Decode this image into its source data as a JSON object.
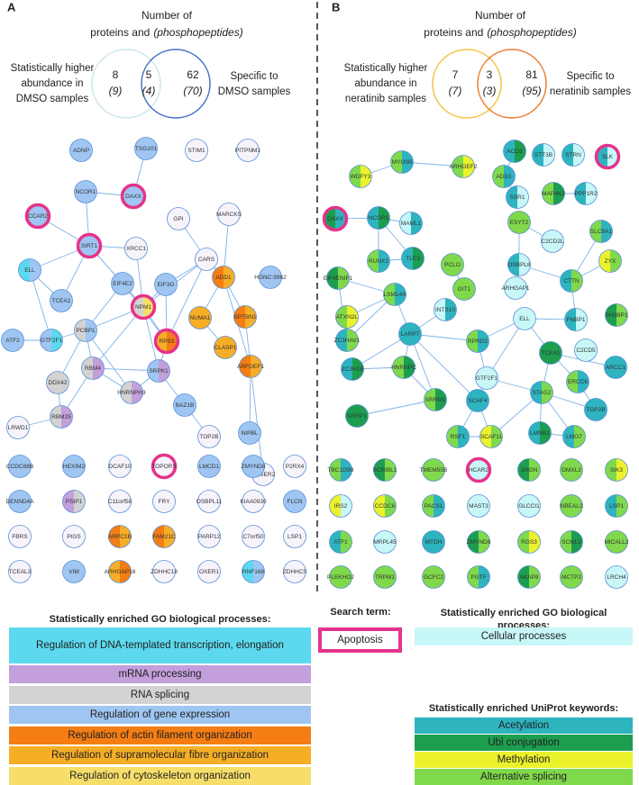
{
  "panels": [
    {
      "letter": "A",
      "venn": {
        "title": "Number of",
        "subtitle": "proteins and",
        "subtitle_italic": "(phosphopeptides)",
        "left_label": [
          "Statistically higher",
          "abundance in",
          "DMSO samples"
        ],
        "right_label": [
          "Specific to",
          "DMSO samples"
        ],
        "counts": [
          {
            "proteins": "8",
            "phosphopeptides": "(9)"
          },
          {
            "proteins": "5",
            "phosphopeptides": "(4)"
          },
          {
            "proteins": "62",
            "phosphopeptides": "(70)"
          }
        ]
      },
      "network": [
        "ADNP",
        "TSG101",
        "STIM1",
        "PITPNM1",
        "NCOR1",
        "DAXX",
        "CCAR2",
        "GPI",
        "MARCKS",
        "SIRT1",
        "XRCC1",
        "CARS",
        "ELL",
        "ADD1",
        "HGNC:9962",
        "EIF4E2",
        "EIF3G",
        "TCEA1",
        "NPM1",
        "NUMA1",
        "SPTBN1",
        "ATF2",
        "GTF2F1",
        "PCBP1",
        "RPS3",
        "CLASP1",
        "RBM4",
        "SRPK1",
        "ARFGEF1",
        "DDX42",
        "HNRNPH3",
        "BAZ1B",
        "RBM25",
        "LRWD1",
        "TOP2B",
        "NIPBL",
        "CCSER2"
      ],
      "unconnected": [
        "CCDC88B",
        "HEXIM2",
        "DCAF10",
        "TOPORS",
        "LMCD1",
        "ZMYND8",
        "P2RX4",
        "DENND4A",
        "PSIP1",
        "C11orf58",
        "FRY",
        "OSBPL11",
        "KIAA0930",
        "FLCN",
        "FBRS",
        "PIGS",
        "ARPC1B",
        "FAM21C",
        "PARP12",
        "C7orf50",
        "LSP1",
        "TCEAL3",
        "VIM",
        "ARHGAP18",
        "ZDHHC18",
        "OXER1",
        "RNF168",
        "ZDHHC5"
      ]
    },
    {
      "letter": "B",
      "venn": {
        "title": "Number of",
        "subtitle": "proteins and",
        "subtitle_italic": "(phosphopeptides)",
        "left_label": [
          "Statistically higher",
          "abundance in",
          "neratinib samples"
        ],
        "right_label": [
          "Specific to",
          "neratinib samples"
        ],
        "counts": [
          {
            "proteins": "7",
            "phosphopeptides": "(7)"
          },
          {
            "proteins": "3",
            "phosphopeptides": "(3)"
          },
          {
            "proteins": "81",
            "phosphopeptides": "(95)"
          }
        ]
      },
      "network": [
        "WDFY3",
        "MYO9B",
        "ARHGEF2",
        "ACO2",
        "STT3B",
        "STRN",
        "SLK",
        "ADD1",
        "SSR1",
        "MAP4K2",
        "PPP1R2",
        "DAXX",
        "NCOR1",
        "MAML1",
        "RUNX1",
        "TLE3",
        "ESYT2",
        "C2CD2L",
        "SLC9A1",
        "EIF4ENIF1",
        "PCLO",
        "GIT1",
        "OSBPL8",
        "ARHGAP1",
        "ZYX",
        "CTTN",
        "LSM14A",
        "ATXN2L",
        "INTS10",
        "FNBP1",
        "SH3BP1",
        "ELL",
        "ZC3HAV1",
        "LARP7",
        "RPRD2",
        "C2CD5",
        "TCEA1",
        "ARCC1",
        "ZC3H18",
        "HNRNPC",
        "GTF2F1",
        "ERCC6",
        "SRRM1",
        "SCAF4",
        "NSRP1",
        "STAG2",
        "TOP2B",
        "RSF1",
        "SCAF11",
        "LMNB1",
        "LMO7"
      ],
      "unconnected": [
        "TBC1D9B",
        "SCRIBL1",
        "TMEM55B",
        "HCAR2",
        "SRGN",
        "DMXL2",
        "SIK3",
        "IRS2",
        "CCDC6",
        "PACS1",
        "MAST3",
        "GLCCI1",
        "NBEAL2",
        "LSP1",
        "ATF1",
        "MRPL45",
        "MTDH",
        "ZMYND8",
        "RGS3",
        "SCML2",
        "MICALL2",
        "PLEKHO2",
        "TRPM1",
        "GCFC2",
        "PGTF",
        "AKAP8",
        "MCTP2",
        "LRCH4",
        "GFPT1",
        "NHSL2",
        "DNAJC2",
        "ANKS1A",
        "SMG8",
        "IL17RA"
      ]
    }
  ],
  "legend": {
    "go_title": "Statistically enriched GO biological processes:",
    "go_left": [
      {
        "label": "Regulation of DNA-templated transcription, elongation",
        "color": "#5cd9ee"
      },
      {
        "label": "mRNA processing",
        "color": "#c39fdc"
      },
      {
        "label": "RNA splicing",
        "color": "#d3d3d3"
      },
      {
        "label": "Regulation of gene expression",
        "color": "#9fc6f2"
      },
      {
        "label": "Regulation of actin filament organization",
        "color": "#f47d14"
      },
      {
        "label": "Regulation of supramolecular fibre organization",
        "color": "#f6ae26"
      },
      {
        "label": "Regulation of cytoskeleton organization",
        "color": "#f7de6a"
      }
    ],
    "search_title": "Search term:",
    "search_term": "Apoptosis",
    "search_color": "#e5338b",
    "go_right": [
      {
        "label": "Cellular processes",
        "color": "#c8f7f8"
      }
    ],
    "uniprot_title": "Statistically enriched UniProt keywords:",
    "uniprot": [
      {
        "label": "Acetylation",
        "color": "#2db4bf"
      },
      {
        "label": "Ubl conjugation",
        "color": "#1c9e4e"
      },
      {
        "label": "Methylation",
        "color": "#ebf22c"
      },
      {
        "label": "Alternative splicing",
        "color": "#80d94b"
      }
    ]
  }
}
